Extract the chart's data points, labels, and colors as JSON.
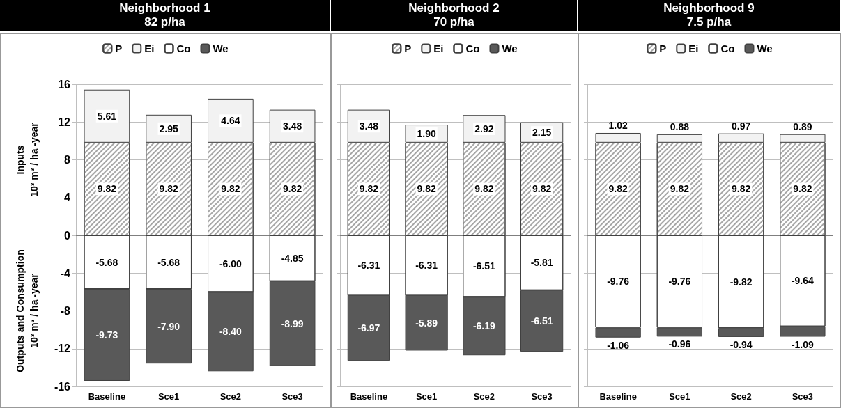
{
  "chart_data": [
    {
      "type": "bar",
      "title": "Neighborhood 1\n82 p/ha",
      "ylabel": "Inputs\n10³ m³ / ha -year",
      "annotations": [
        "Outputs and Consumption\n10³ m³ / ha -year"
      ],
      "categories": [
        "Baseline",
        "Sce1",
        "Sce2",
        "Sce3"
      ],
      "stacked": true,
      "ylim": [
        -16,
        16
      ],
      "yticks": [
        -16,
        -12,
        -8,
        -4,
        0,
        4,
        8,
        12,
        16
      ],
      "grid": "y",
      "legend": "top",
      "series": [
        {
          "name": "P",
          "color": "#ffffff",
          "values": [
            9.82,
            9.82,
            9.82,
            9.82
          ],
          "value_labels": [
            "9.82",
            "9.82",
            "9.82",
            "9.82"
          ]
        },
        {
          "name": "Ei",
          "color": "#f2f2f2",
          "values": [
            5.61,
            2.95,
            4.64,
            3.48
          ],
          "value_labels": [
            "5.61",
            "2.95",
            "4.64",
            "3.48"
          ]
        },
        {
          "name": "Co",
          "color": "#ffffff",
          "values": [
            -5.68,
            -5.68,
            -6.0,
            -4.85
          ],
          "value_labels": [
            "-5.68",
            "-5.68",
            "-6.00",
            "-4.85"
          ]
        },
        {
          "name": "We",
          "color": "#595959",
          "values": [
            -9.73,
            -7.9,
            -8.4,
            -8.99
          ],
          "value_labels": [
            "-9.73",
            "-7.90",
            "-8.40",
            "-8.99"
          ]
        }
      ]
    },
    {
      "type": "bar",
      "title": "Neighborhood 2\n70 p/ha",
      "categories": [
        "Baseline",
        "Sce1",
        "Sce2",
        "Sce3"
      ],
      "stacked": true,
      "ylim": [
        -16,
        16
      ],
      "yticks": [
        -16,
        -12,
        -8,
        -4,
        0,
        4,
        8,
        12,
        16
      ],
      "grid": "y",
      "legend": "top",
      "tick_labels": "x",
      "series": [
        {
          "name": "P",
          "color": "#ffffff",
          "values": [
            9.82,
            9.82,
            9.82,
            9.82
          ],
          "value_labels": [
            "9.82",
            "9.82",
            "9.82",
            "9.82"
          ]
        },
        {
          "name": "Ei",
          "color": "#f2f2f2",
          "values": [
            3.48,
            1.9,
            2.92,
            2.15
          ],
          "value_labels": [
            "3.48",
            "1.90",
            "2.92",
            "2.15"
          ]
        },
        {
          "name": "Co",
          "color": "#ffffff",
          "values": [
            -6.31,
            -6.31,
            -6.51,
            -5.81
          ],
          "value_labels": [
            "-6.31",
            "-6.31",
            "-6.51",
            "-5.81"
          ]
        },
        {
          "name": "We",
          "color": "#595959",
          "values": [
            -6.97,
            -5.89,
            -6.19,
            -6.51
          ],
          "value_labels": [
            "-6.97",
            "-5.89",
            "-6.19",
            "-6.51"
          ]
        }
      ]
    },
    {
      "type": "bar",
      "title": "Neighborhood 9\n7.5 p/ha",
      "categories": [
        "Baseline",
        "Sce1",
        "Sce2",
        "Sce3"
      ],
      "stacked": true,
      "ylim": [
        -16,
        16
      ],
      "yticks": [
        -16,
        -12,
        -8,
        -4,
        0,
        4,
        8,
        12,
        16
      ],
      "grid": "y",
      "legend": "top",
      "tick_labels": "x",
      "series": [
        {
          "name": "P",
          "color": "#ffffff",
          "values": [
            9.82,
            9.82,
            9.82,
            9.82
          ],
          "value_labels": [
            "9.82",
            "9.82",
            "9.82",
            "9.82"
          ]
        },
        {
          "name": "Ei",
          "color": "#f2f2f2",
          "values": [
            1.02,
            0.88,
            0.97,
            0.89
          ],
          "value_labels": [
            "1.02",
            "0.88",
            "0.97",
            "0.89"
          ]
        },
        {
          "name": "Co",
          "color": "#ffffff",
          "values": [
            -9.76,
            -9.76,
            -9.82,
            -9.64
          ],
          "value_labels": [
            "-9.76",
            "-9.76",
            "-9.82",
            "-9.64"
          ]
        },
        {
          "name": "We",
          "color": "#595959",
          "values": [
            -1.06,
            -0.96,
            -0.94,
            -1.09
          ],
          "value_labels": [
            "-1.06",
            "-0.96",
            "-0.94",
            "-1.09"
          ]
        }
      ]
    }
  ]
}
